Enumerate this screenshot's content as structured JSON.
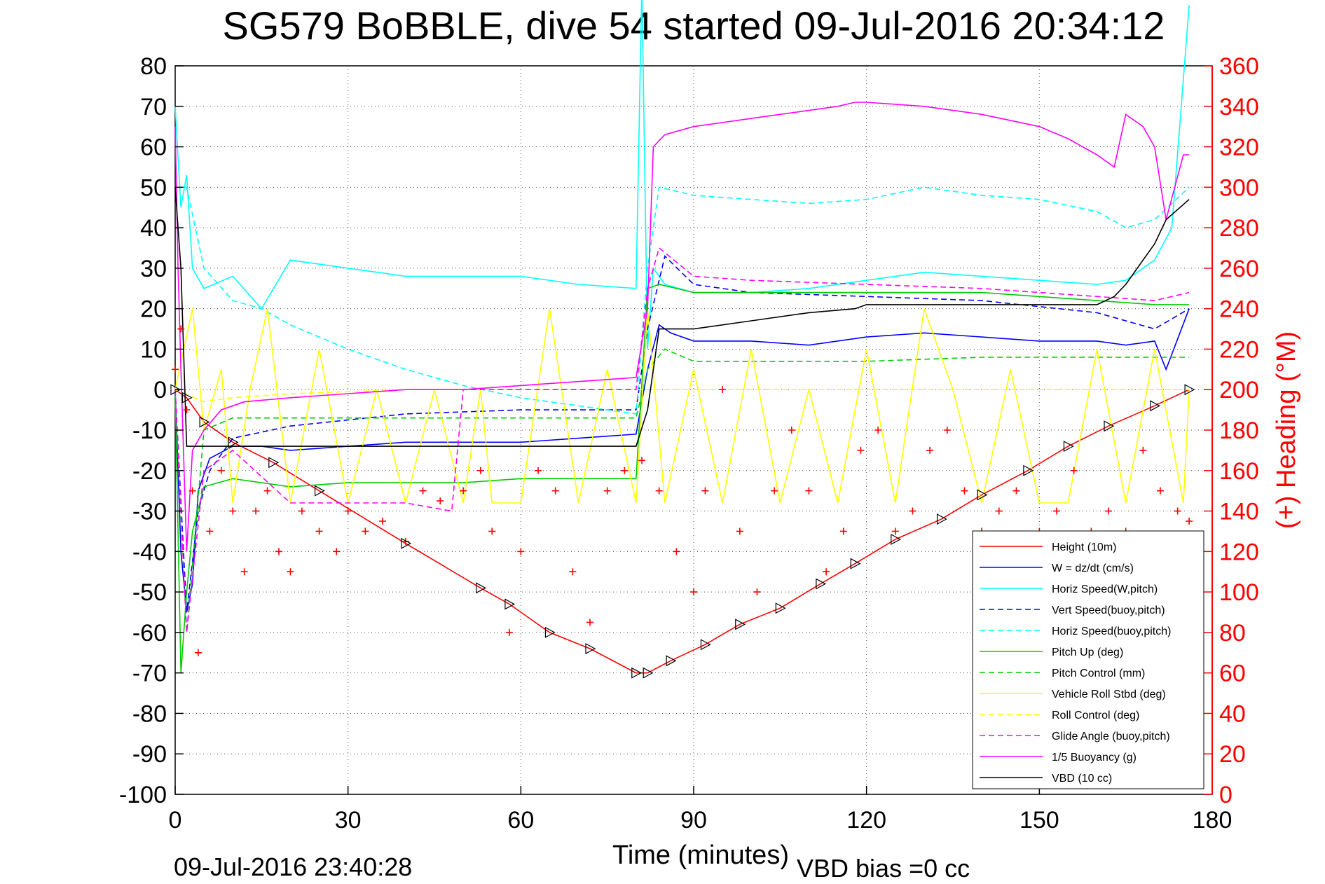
{
  "chart_data": {
    "type": "line",
    "title": "SG579 BoBBLE, dive 54 started 09-Jul-2016 20:34:12",
    "xlabel": "Time (minutes)",
    "ylabel_right": "(+) Heading (°M)",
    "footer_left": "09-Jul-2016 23:40:28",
    "footer_right": "VBD bias =0 cc",
    "xlim": [
      0,
      180
    ],
    "ylim": [
      -100,
      80
    ],
    "ylim_right": [
      0,
      360
    ],
    "x_ticks": [
      "0",
      "30",
      "60",
      "90",
      "120",
      "150",
      "180"
    ],
    "y_ticks": [
      "80",
      "70",
      "60",
      "50",
      "40",
      "30",
      "20",
      "10",
      "0",
      "-10",
      "-20",
      "-30",
      "-40",
      "-50",
      "-60",
      "-70",
      "-80",
      "-90",
      "-100"
    ],
    "y_right_ticks": [
      "360",
      "340",
      "320",
      "300",
      "280",
      "260",
      "240",
      "220",
      "200",
      "180",
      "160",
      "140",
      "120",
      "100",
      "80",
      "60",
      "40",
      "20",
      "0"
    ],
    "grid": true,
    "legend_position": "bottom-right",
    "series": [
      {
        "name": "Height (10m)",
        "color": "#ff0000",
        "style": "solid",
        "x": [
          0,
          2,
          5,
          10,
          17,
          25,
          40,
          53,
          58,
          65,
          72,
          80,
          82,
          86,
          92,
          98,
          105,
          112,
          118,
          125,
          133,
          140,
          148,
          155,
          162,
          170,
          176
        ],
        "y": [
          0,
          -2,
          -8,
          -13,
          -18,
          -25,
          -38,
          -49,
          -53,
          -60,
          -64,
          -70,
          -70,
          -67,
          -63,
          -58,
          -54,
          -48,
          -43,
          -37,
          -32,
          -26,
          -20,
          -14,
          -9,
          -4,
          0
        ]
      },
      {
        "name": "W = dz/dt (cm/s)",
        "color": "#0000ff",
        "style": "solid",
        "x": [
          0,
          1,
          2,
          3,
          4,
          6,
          10,
          15,
          20,
          30,
          40,
          50,
          60,
          70,
          80,
          82,
          84,
          86,
          90,
          100,
          110,
          120,
          130,
          140,
          150,
          160,
          165,
          170,
          172,
          176
        ],
        "y": [
          0,
          -40,
          -55,
          -48,
          -25,
          -17,
          -14,
          -14,
          -15,
          -14,
          -13,
          -13,
          -13,
          -12,
          -11,
          5,
          16,
          14,
          12,
          12,
          11,
          13,
          14,
          13,
          12,
          12,
          11,
          12,
          5,
          20
        ]
      },
      {
        "name": "Horiz Speed(W,pitch)",
        "color": "#00ffff",
        "style": "solid",
        "x": [
          0,
          1,
          2,
          3,
          5,
          10,
          15,
          20,
          25,
          30,
          40,
          50,
          60,
          70,
          80,
          81,
          82,
          83,
          85,
          90,
          100,
          110,
          120,
          130,
          140,
          150,
          160,
          165,
          170,
          173,
          176
        ],
        "y": [
          70,
          45,
          53,
          30,
          25,
          28,
          20,
          32,
          31,
          30,
          28,
          28,
          28,
          26,
          25,
          100,
          10,
          30,
          26,
          24,
          24,
          25,
          27,
          29,
          28,
          27,
          26,
          27,
          32,
          40,
          95
        ]
      },
      {
        "name": "Vert Speed(buoy,pitch)",
        "color": "#0000ff",
        "style": "dashed",
        "x": [
          0,
          2,
          4,
          6,
          10,
          20,
          40,
          60,
          80,
          82,
          85,
          90,
          100,
          120,
          140,
          160,
          170,
          176
        ],
        "y": [
          0,
          -55,
          -30,
          -20,
          -12,
          -9,
          -6,
          -5,
          -5,
          15,
          33,
          26,
          24,
          23,
          22,
          19,
          15,
          20
        ]
      },
      {
        "name": "Horiz Speed(buoy,pitch)",
        "color": "#00ffff",
        "style": "dashed",
        "x": [
          0,
          2,
          5,
          10,
          15,
          20,
          30,
          40,
          50,
          60,
          70,
          80,
          82,
          84,
          90,
          100,
          110,
          120,
          130,
          140,
          150,
          160,
          165,
          170,
          176
        ],
        "y": [
          50,
          50,
          30,
          22,
          20,
          16,
          10,
          5,
          1,
          -2,
          -4,
          -6,
          30,
          50,
          48,
          47,
          46,
          47,
          50,
          48,
          47,
          44,
          40,
          42,
          50
        ]
      },
      {
        "name": "Pitch Up (deg)",
        "color": "#00cc00",
        "style": "solid",
        "x": [
          0,
          1,
          2,
          3,
          5,
          10,
          20,
          30,
          40,
          50,
          60,
          70,
          80,
          82,
          84,
          90,
          100,
          120,
          140,
          160,
          170,
          176
        ],
        "y": [
          0,
          -70,
          -50,
          -35,
          -24,
          -22,
          -24,
          -23,
          -23,
          -23,
          -22,
          -22,
          -22,
          25,
          26,
          24,
          24,
          24,
          24,
          22,
          21,
          21
        ]
      },
      {
        "name": "Pitch Control (mm)",
        "color": "#00cc00",
        "style": "dashed",
        "x": [
          0,
          2,
          5,
          10,
          20,
          40,
          60,
          80,
          82,
          85,
          90,
          100,
          120,
          140,
          160,
          170,
          176
        ],
        "y": [
          -2,
          -60,
          -10,
          -7,
          -7,
          -7,
          -7,
          -7,
          5,
          10,
          7,
          7,
          7,
          8,
          8,
          8,
          8
        ]
      },
      {
        "name": "Vehicle Roll Stbd (deg)",
        "color": "#ffff00",
        "style": "solid",
        "x": [
          0,
          3,
          5,
          8,
          10,
          13,
          16,
          20,
          25,
          30,
          35,
          40,
          45,
          50,
          53,
          55,
          60,
          65,
          70,
          75,
          80,
          82,
          85,
          90,
          95,
          100,
          105,
          110,
          115,
          120,
          125,
          130,
          135,
          140,
          145,
          150,
          155,
          160,
          165,
          170,
          175,
          176
        ],
        "y": [
          0,
          20,
          -10,
          5,
          -28,
          0,
          20,
          -28,
          10,
          -28,
          0,
          -28,
          0,
          -28,
          0,
          -28,
          -28,
          20,
          -28,
          5,
          -28,
          20,
          -28,
          5,
          -28,
          10,
          -28,
          0,
          -28,
          10,
          -28,
          20,
          0,
          -28,
          5,
          -28,
          -28,
          10,
          -28,
          10,
          -28,
          0
        ]
      },
      {
        "name": "Roll Control (deg)",
        "color": "#ffff00",
        "style": "dashed",
        "x": [
          0,
          5,
          10,
          20,
          40,
          60,
          80,
          82,
          85,
          90,
          100,
          120,
          140,
          160,
          176
        ],
        "y": [
          0,
          -3,
          -2,
          -1,
          0,
          0,
          0,
          0,
          0,
          0,
          0,
          0,
          0,
          0,
          0
        ]
      },
      {
        "name": "Glide Angle (buoy,pitch)",
        "color": "#ff00ff",
        "style": "dashed",
        "x": [
          0,
          2,
          5,
          10,
          20,
          30,
          40,
          48,
          50,
          55,
          60,
          80,
          82,
          84,
          90,
          100,
          120,
          140,
          160,
          170,
          176
        ],
        "y": [
          0,
          -60,
          -20,
          -15,
          -28,
          -28,
          -28,
          -30,
          0,
          0,
          0,
          0,
          25,
          35,
          28,
          27,
          26,
          25,
          23,
          22,
          24
        ]
      },
      {
        "name": "1/5 Buoyancy (g)",
        "color": "#ff00ff",
        "style": "solid",
        "x": [
          0,
          0.5,
          1,
          2,
          3,
          5,
          8,
          12,
          20,
          30,
          40,
          50,
          60,
          70,
          80,
          82,
          83,
          85,
          90,
          100,
          105,
          110,
          115,
          118,
          120,
          130,
          140,
          150,
          155,
          160,
          163,
          165,
          168,
          170,
          172,
          175,
          176
        ],
        "y": [
          65,
          30,
          5,
          -40,
          -15,
          -10,
          -5,
          -3,
          -2,
          -1,
          0,
          0,
          1,
          2,
          3,
          20,
          60,
          63,
          65,
          67,
          68,
          69,
          70,
          71,
          71,
          70,
          68,
          65,
          62,
          58,
          55,
          68,
          65,
          60,
          42,
          58,
          58
        ]
      },
      {
        "name": "VBD (10 cc)",
        "color": "#000000",
        "style": "solid",
        "x": [
          0,
          1,
          2,
          3,
          10,
          20,
          40,
          60,
          70,
          80,
          82,
          84,
          86,
          90,
          100,
          110,
          118,
          120,
          130,
          140,
          150,
          160,
          163,
          165,
          168,
          170,
          172,
          176
        ],
        "y": [
          50,
          30,
          -14,
          -14,
          -14,
          -14,
          -14,
          -14,
          -14,
          -14,
          -5,
          15,
          15,
          15,
          17,
          19,
          20,
          21,
          21,
          21,
          21,
          21,
          23,
          26,
          32,
          36,
          42,
          47
        ]
      }
    ],
    "heading_series": {
      "name": "(+) Heading (°M)",
      "color": "#ff0000",
      "marker": "+",
      "x": [
        0,
        1,
        2,
        3,
        4,
        6,
        8,
        10,
        12,
        14,
        16,
        18,
        20,
        22,
        25,
        28,
        30,
        33,
        36,
        40,
        43,
        46,
        50,
        53,
        55,
        58,
        60,
        63,
        66,
        69,
        72,
        75,
        78,
        81,
        84,
        87,
        90,
        92,
        95,
        98,
        101,
        104,
        107,
        110,
        113,
        116,
        119,
        122,
        125,
        128,
        131,
        134,
        137,
        140,
        143,
        146,
        150,
        153,
        156,
        159,
        162,
        165,
        168,
        171,
        174,
        176
      ],
      "y": [
        210,
        230,
        190,
        150,
        70,
        130,
        160,
        140,
        110,
        140,
        150,
        120,
        110,
        140,
        130,
        120,
        140,
        130,
        135,
        125,
        150,
        145,
        150,
        160,
        130,
        80,
        120,
        160,
        150,
        110,
        85,
        150,
        160,
        165,
        150,
        120,
        100,
        150,
        200,
        130,
        100,
        150,
        180,
        150,
        110,
        130,
        170,
        180,
        130,
        140,
        170,
        180,
        150,
        130,
        140,
        150,
        130,
        140,
        160,
        130,
        140,
        130,
        170,
        150,
        140,
        135
      ]
    },
    "marker_triangles_note": "black triangle markers along Height trace"
  }
}
